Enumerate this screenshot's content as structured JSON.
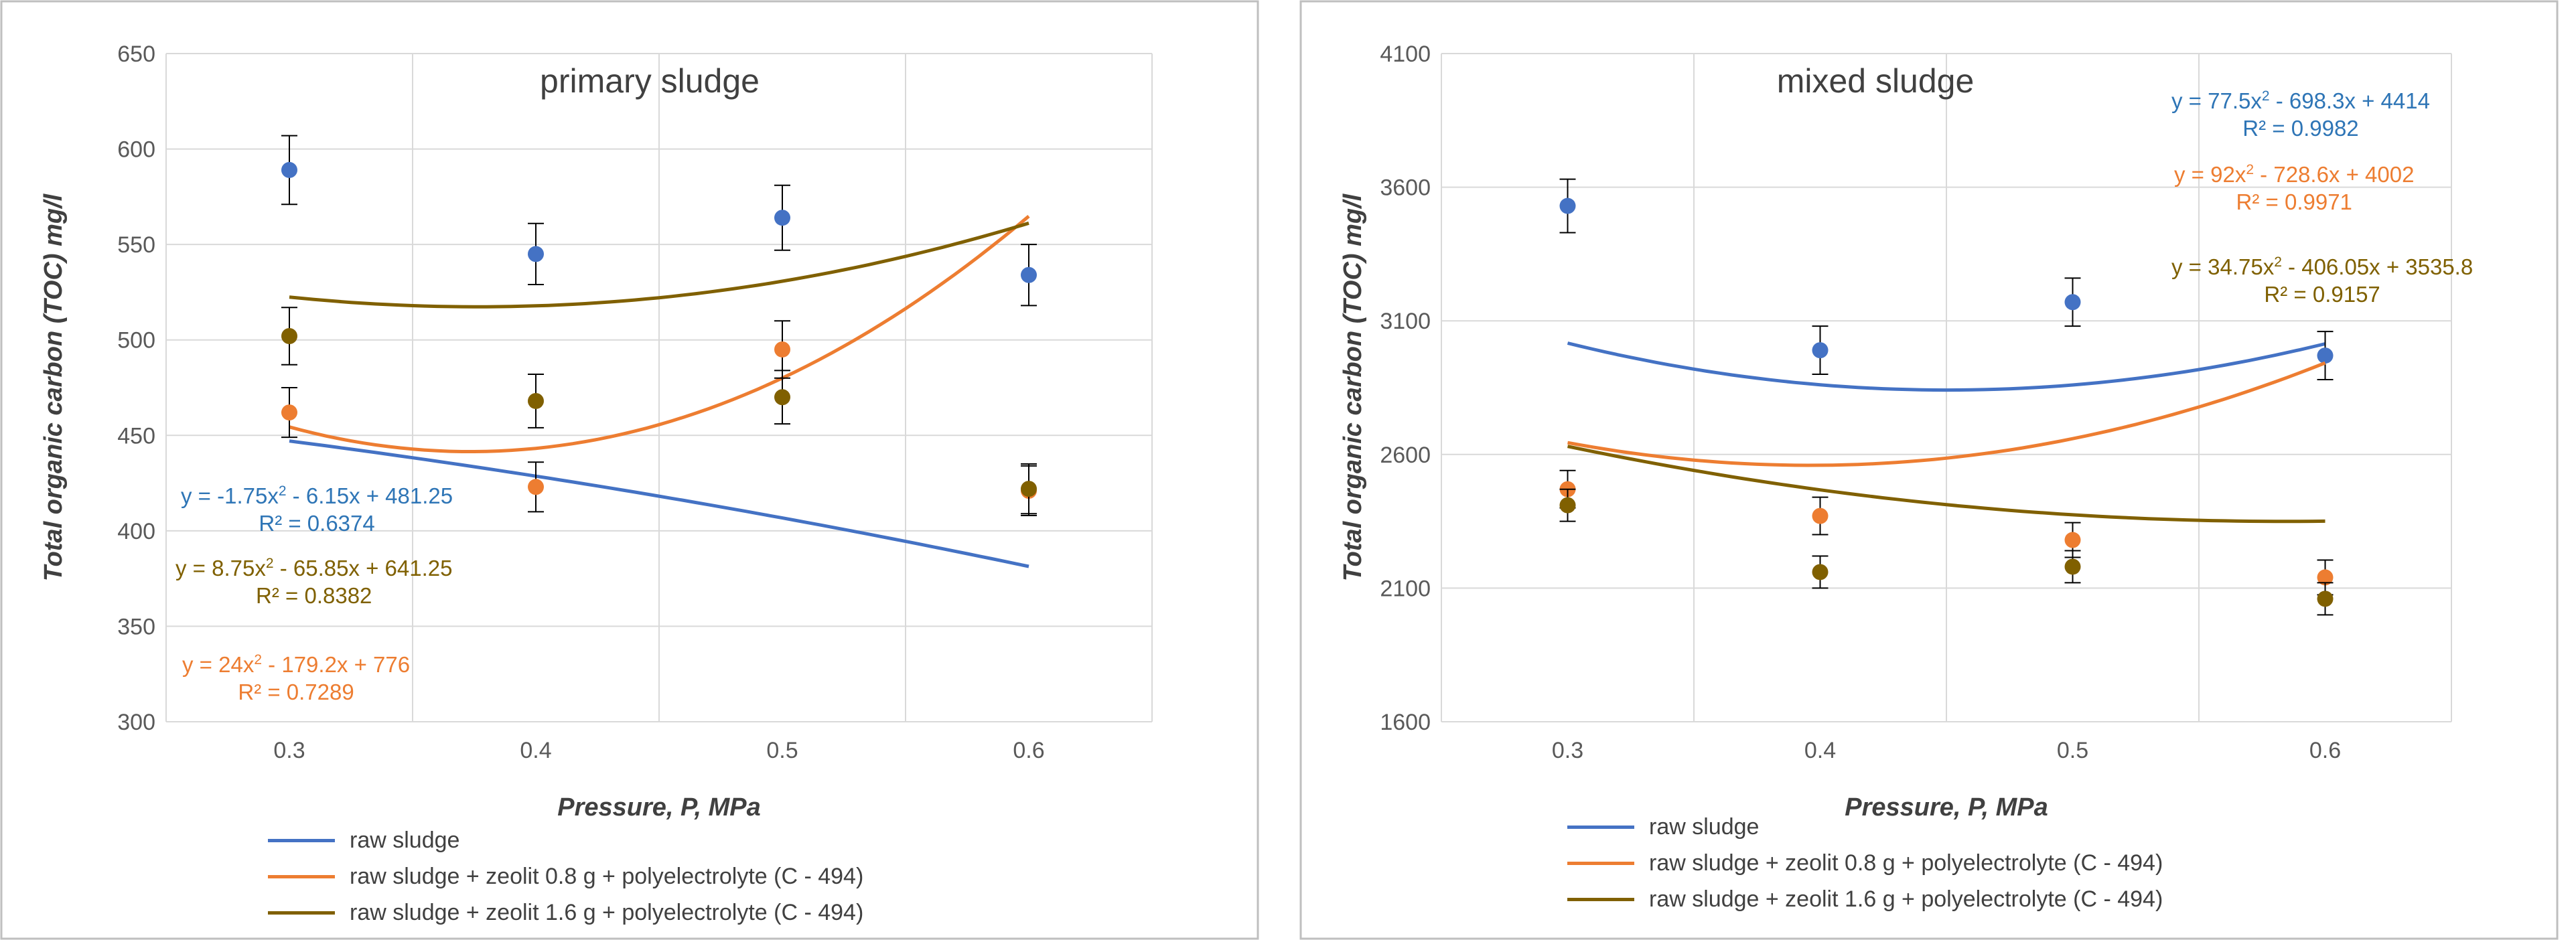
{
  "colors": {
    "raw": "#4472C4",
    "z08": "#ED7D31",
    "z16": "#806000",
    "axis": "#595959",
    "grid": "#D9D9D9",
    "eq_raw": "#2E75B6",
    "eq_z08": "#ED7D31",
    "eq_z16": "#7F6000"
  },
  "legend": [
    {
      "key": "raw",
      "label": "raw sludge"
    },
    {
      "key": "z08",
      "label": "raw sludge + zeolit 0.8 g + polyelectrolyte (C - 494)"
    },
    {
      "key": "z16",
      "label": "raw sludge + zeolit 1.6 g + polyelectrolyte (C - 494)"
    }
  ],
  "chart_data": [
    {
      "type": "scatter",
      "title": "primary sludge",
      "xlabel": "Pressure, P,  MPa",
      "ylabel": "Total organic carbon (TOC) mg/l",
      "x": [
        0.3,
        0.4,
        0.5,
        0.6
      ],
      "x_ticks": [
        "0.3",
        "0.4",
        "0.5",
        "0.6"
      ],
      "xlim": [
        0.25,
        0.65
      ],
      "ylim": [
        300,
        650
      ],
      "y_ticks": [
        300,
        350,
        400,
        450,
        500,
        550,
        600,
        650
      ],
      "series": [
        {
          "key": "raw",
          "name": "raw sludge",
          "values": [
            589,
            545,
            564,
            534
          ],
          "error": [
            18,
            16,
            17,
            16
          ],
          "trend": {
            "a": -1.75,
            "b": -6.15,
            "c": 481.25
          }
        },
        {
          "key": "z08",
          "name": "raw sludge + zeolit 0.8 g + polyelectrolyte (C - 494)",
          "values": [
            462,
            423,
            495,
            421
          ],
          "error": [
            13,
            13,
            15,
            13
          ],
          "trend": {
            "a": 24,
            "b": -179.2,
            "c": 776
          }
        },
        {
          "key": "z16",
          "name": "raw sludge + zeolit 1.6 g + polyelectrolyte (C - 494)",
          "values": [
            502,
            468,
            470,
            422
          ],
          "error": [
            15,
            14,
            14,
            13
          ],
          "trend": {
            "a": 8.75,
            "b": -65.85,
            "c": 641.25
          }
        }
      ],
      "equations": [
        {
          "key": "raw",
          "eq_prefix": "y = -1.75x",
          "eq_suffix": " - 6.15x + 481.25",
          "r2": "R² = 0.6374"
        },
        {
          "key": "z16",
          "eq_prefix": "y = 8.75x",
          "eq_suffix": " - 65.85x + 641.25",
          "r2": "R² = 0.8382"
        },
        {
          "key": "z08",
          "eq_prefix": "y = 24x",
          "eq_suffix": " - 179.2x + 776",
          "r2": "R² = 0.7289"
        }
      ]
    },
    {
      "type": "scatter",
      "title": "mixed sludge",
      "xlabel": "Pressure, P,  MPa",
      "ylabel": "Total organic carbon (TOC) mg/l",
      "x": [
        0.3,
        0.4,
        0.5,
        0.6
      ],
      "x_ticks": [
        "0.3",
        "0.4",
        "0.5",
        "0.6"
      ],
      "xlim": [
        0.25,
        0.65
      ],
      "ylim": [
        1600,
        4100
      ],
      "y_ticks": [
        1600,
        2100,
        2600,
        3100,
        3600,
        4100
      ],
      "series": [
        {
          "key": "raw",
          "name": "raw sludge",
          "values": [
            3530,
            2990,
            3170,
            2970
          ],
          "error": [
            100,
            90,
            90,
            90
          ],
          "trend": {
            "a": 77.5,
            "b": -698.3,
            "c": 4414
          }
        },
        {
          "key": "z08",
          "name": "raw sludge + zeolit 0.8 g + polyelectrolyte (C - 494)",
          "values": [
            2470,
            2370,
            2280,
            2140
          ],
          "error": [
            70,
            70,
            65,
            65
          ],
          "trend": {
            "a": 92,
            "b": -728.6,
            "c": 4002
          }
        },
        {
          "key": "z16",
          "name": "raw sludge + zeolit 1.6 g + polyelectrolyte (C - 494)",
          "values": [
            2410,
            2160,
            2180,
            2060
          ],
          "error": [
            60,
            60,
            60,
            60
          ],
          "trend": {
            "a": 34.75,
            "b": -406.05,
            "c": 3535.8
          }
        }
      ],
      "equations": [
        {
          "key": "raw",
          "eq_prefix": "y = 77.5x",
          "eq_suffix": " - 698.3x + 4414",
          "r2": "R² = 0.9982"
        },
        {
          "key": "z08",
          "eq_prefix": "y = 92x",
          "eq_suffix": " - 728.6x + 4002",
          "r2": "R² = 0.9971"
        },
        {
          "key": "z16",
          "eq_prefix": "y = 34.75x",
          "eq_suffix": " - 406.05x + 3535.8",
          "r2": "R² = 0.9157"
        }
      ]
    }
  ]
}
